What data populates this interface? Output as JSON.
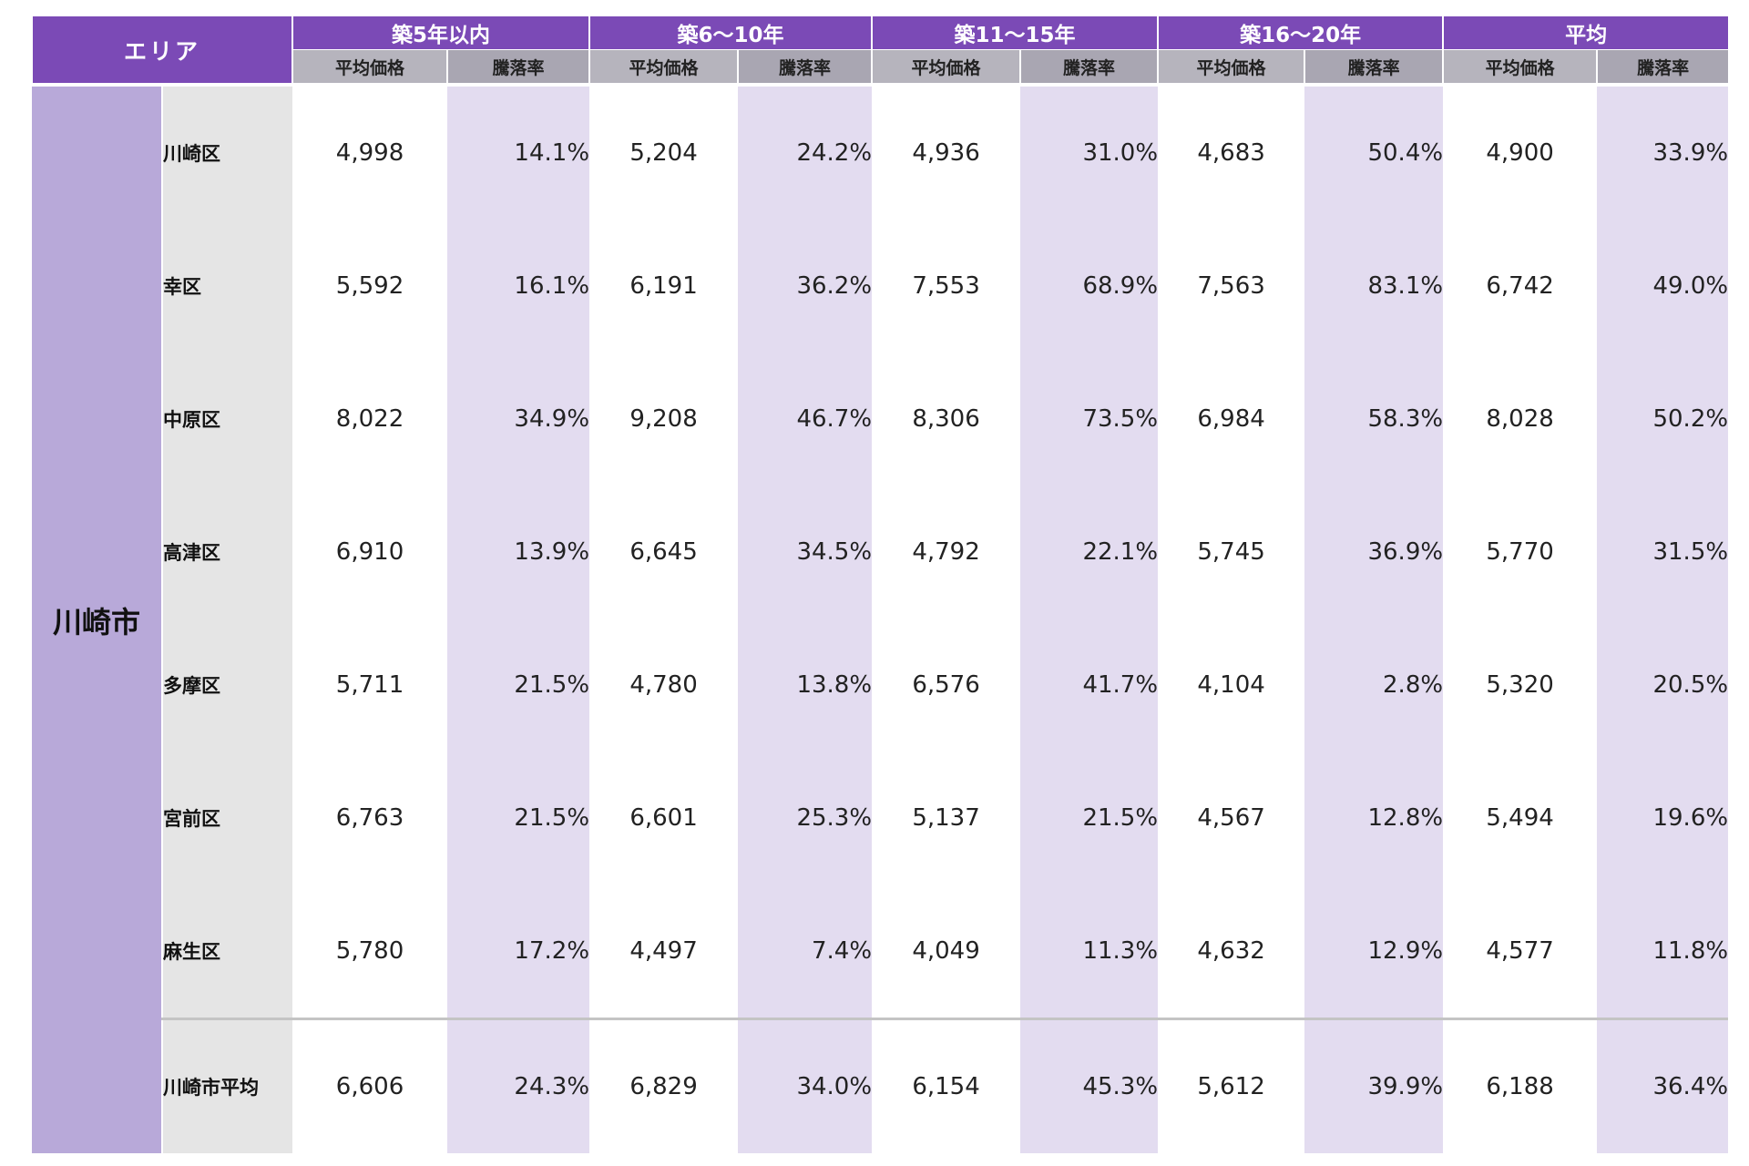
{
  "header": {
    "area_label": "エリア",
    "groups": [
      "築5年以内",
      "築6〜10年",
      "築11〜15年",
      "築16〜20年",
      "平均"
    ],
    "sub_price": "平均価格",
    "sub_rate": "騰落率"
  },
  "city": "川崎市",
  "rows": [
    {
      "ward": "川崎区",
      "values": [
        "4,998",
        "14.1%",
        "5,204",
        "24.2%",
        "4,936",
        "31.0%",
        "4,683",
        "50.4%",
        "4,900",
        "33.9%"
      ]
    },
    {
      "ward": "幸区",
      "values": [
        "5,592",
        "16.1%",
        "6,191",
        "36.2%",
        "7,553",
        "68.9%",
        "7,563",
        "83.1%",
        "6,742",
        "49.0%"
      ]
    },
    {
      "ward": "中原区",
      "values": [
        "8,022",
        "34.9%",
        "9,208",
        "46.7%",
        "8,306",
        "73.5%",
        "6,984",
        "58.3%",
        "8,028",
        "50.2%"
      ]
    },
    {
      "ward": "高津区",
      "values": [
        "6,910",
        "13.9%",
        "6,645",
        "34.5%",
        "4,792",
        "22.1%",
        "5,745",
        "36.9%",
        "5,770",
        "31.5%"
      ]
    },
    {
      "ward": "多摩区",
      "values": [
        "5,711",
        "21.5%",
        "4,780",
        "13.8%",
        "6,576",
        "41.7%",
        "4,104",
        "2.8%",
        "5,320",
        "20.5%"
      ]
    },
    {
      "ward": "宮前区",
      "values": [
        "6,763",
        "21.5%",
        "6,601",
        "25.3%",
        "5,137",
        "21.5%",
        "4,567",
        "12.8%",
        "5,494",
        "19.6%"
      ]
    },
    {
      "ward": "麻生区",
      "values": [
        "5,780",
        "17.2%",
        "4,497",
        "7.4%",
        "4,049",
        "11.3%",
        "4,632",
        "12.9%",
        "4,577",
        "11.8%"
      ]
    },
    {
      "ward": "川崎市平均",
      "values": [
        "6,606",
        "24.3%",
        "6,829",
        "34.0%",
        "6,154",
        "45.3%",
        "5,612",
        "39.9%",
        "6,188",
        "36.4%"
      ]
    }
  ],
  "colors": {
    "header_purple": "#7b4ab6",
    "subheader_gray": "#b6b4bd",
    "city_lavender": "#b8a9d9",
    "rate_column_lavender": "#e3dcf0",
    "ward_gray": "#e5e5e5"
  }
}
